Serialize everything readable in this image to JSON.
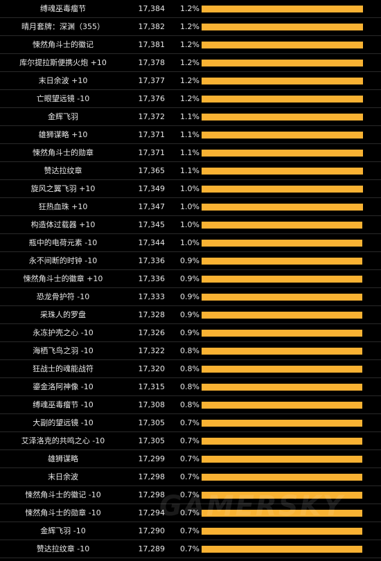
{
  "chart_data": {
    "type": "bar",
    "orientation": "horizontal",
    "max_value": 17384,
    "rows": [
      {
        "name": "缚魂巫毒瘤节",
        "value": "17,384",
        "v": 17384,
        "pct": "1.2%"
      },
      {
        "name": "晴月套牌：深渊（355）",
        "value": "17,382",
        "v": 17382,
        "pct": "1.2%"
      },
      {
        "name": "悚然角斗士的徽记",
        "value": "17,381",
        "v": 17381,
        "pct": "1.2%"
      },
      {
        "name": "库尔提拉斯便携火炮 +10",
        "value": "17,378",
        "v": 17378,
        "pct": "1.2%"
      },
      {
        "name": "末日余波 +10",
        "value": "17,377",
        "v": 17377,
        "pct": "1.2%"
      },
      {
        "name": "亡眼望远镜 -10",
        "value": "17,376",
        "v": 17376,
        "pct": "1.2%"
      },
      {
        "name": "金辉飞羽",
        "value": "17,372",
        "v": 17372,
        "pct": "1.1%"
      },
      {
        "name": "雄狮谋略 +10",
        "value": "17,371",
        "v": 17371,
        "pct": "1.1%"
      },
      {
        "name": "悚然角斗士的勋章",
        "value": "17,371",
        "v": 17371,
        "pct": "1.1%"
      },
      {
        "name": "赞达拉纹章",
        "value": "17,365",
        "v": 17365,
        "pct": "1.1%"
      },
      {
        "name": "旋风之翼飞羽 +10",
        "value": "17,349",
        "v": 17349,
        "pct": "1.0%"
      },
      {
        "name": "狂热血珠 +10",
        "value": "17,347",
        "v": 17347,
        "pct": "1.0%"
      },
      {
        "name": "构造体过载器 +10",
        "value": "17,345",
        "v": 17345,
        "pct": "1.0%"
      },
      {
        "name": "瓶中的电荷元素 -10",
        "value": "17,344",
        "v": 17344,
        "pct": "1.0%"
      },
      {
        "name": "永不间断的时钟 -10",
        "value": "17,336",
        "v": 17336,
        "pct": "0.9%"
      },
      {
        "name": "悚然角斗士的徽章 +10",
        "value": "17,336",
        "v": 17336,
        "pct": "0.9%"
      },
      {
        "name": "恐龙骨护符 -10",
        "value": "17,333",
        "v": 17333,
        "pct": "0.9%"
      },
      {
        "name": "采珠人的罗盘",
        "value": "17,328",
        "v": 17328,
        "pct": "0.9%"
      },
      {
        "name": "永冻护壳之心 -10",
        "value": "17,326",
        "v": 17326,
        "pct": "0.9%"
      },
      {
        "name": "海栖飞鸟之羽 -10",
        "value": "17,322",
        "v": 17322,
        "pct": "0.8%"
      },
      {
        "name": "狂战士的魂能战符",
        "value": "17,320",
        "v": 17320,
        "pct": "0.8%"
      },
      {
        "name": "鎏金洛阿神像 -10",
        "value": "17,315",
        "v": 17315,
        "pct": "0.8%"
      },
      {
        "name": "缚魂巫毒瘤节 -10",
        "value": "17,308",
        "v": 17308,
        "pct": "0.8%"
      },
      {
        "name": "大副的望远镜 -10",
        "value": "17,305",
        "v": 17305,
        "pct": "0.7%"
      },
      {
        "name": "艾泽洛克的共鸣之心 -10",
        "value": "17,305",
        "v": 17305,
        "pct": "0.7%"
      },
      {
        "name": "雄狮谋略",
        "value": "17,299",
        "v": 17299,
        "pct": "0.7%"
      },
      {
        "name": "末日余波",
        "value": "17,298",
        "v": 17298,
        "pct": "0.7%"
      },
      {
        "name": "悚然角斗士的徽记 -10",
        "value": "17,298",
        "v": 17298,
        "pct": "0.7%"
      },
      {
        "name": "悚然角斗士的勋章 -10",
        "value": "17,294",
        "v": 17294,
        "pct": "0.7%"
      },
      {
        "name": "金辉飞羽 -10",
        "value": "17,290",
        "v": 17290,
        "pct": "0.7%"
      },
      {
        "name": "赞达拉纹章 -10",
        "value": "17,289",
        "v": 17289,
        "pct": "0.7%"
      }
    ]
  },
  "watermark": "GAMERSKY",
  "colors": {
    "bar": "#f9b233",
    "background": "#000000",
    "text": "#e8e8e8"
  }
}
